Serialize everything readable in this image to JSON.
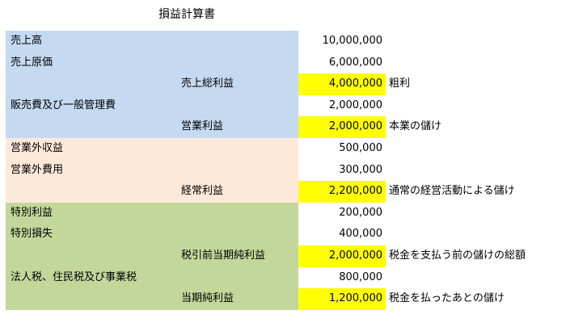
{
  "title": "損益計算書",
  "colors": {
    "blue": "#c5d9f1",
    "peach": "#fde9d9",
    "green": "#c4d79b",
    "highlight": "#ffff00"
  },
  "rows": [
    {
      "label": "売上高",
      "subtotal": "",
      "value": "10,000,000",
      "note": "",
      "group": "blue",
      "highlight": false
    },
    {
      "label": "売上原価",
      "subtotal": "",
      "value": "6,000,000",
      "note": "",
      "group": "blue",
      "highlight": false
    },
    {
      "label": "",
      "subtotal": "売上総利益",
      "value": "4,000,000",
      "note": "粗利",
      "group": "blue",
      "highlight": true
    },
    {
      "label": "販売費及び一般管理費",
      "subtotal": "",
      "value": "2,000,000",
      "note": "",
      "group": "blue",
      "highlight": false
    },
    {
      "label": "",
      "subtotal": "営業利益",
      "value": "2,000,000",
      "note": "本業の儲け",
      "group": "blue",
      "highlight": true
    },
    {
      "label": "営業外収益",
      "subtotal": "",
      "value": "500,000",
      "note": "",
      "group": "peach",
      "highlight": false
    },
    {
      "label": "営業外費用",
      "subtotal": "",
      "value": "300,000",
      "note": "",
      "group": "peach",
      "highlight": false
    },
    {
      "label": "",
      "subtotal": "経常利益",
      "value": "2,200,000",
      "note": "通常の経営活動による儲け",
      "group": "peach",
      "highlight": true
    },
    {
      "label": "特別利益",
      "subtotal": "",
      "value": "200,000",
      "note": "",
      "group": "green",
      "highlight": false
    },
    {
      "label": "特別損失",
      "subtotal": "",
      "value": "400,000",
      "note": "",
      "group": "green",
      "highlight": false
    },
    {
      "label": "",
      "subtotal": "税引前当期純利益",
      "value": "2,000,000",
      "note": "税金を支払う前の儲けの総額",
      "group": "green",
      "highlight": true
    },
    {
      "label": "法人税、住民税及び事業税",
      "subtotal": "",
      "value": "800,000",
      "note": "",
      "group": "green",
      "highlight": false
    },
    {
      "label": "",
      "subtotal": "当期純利益",
      "value": "1,200,000",
      "note": "税金を払ったあとの儲け",
      "group": "green",
      "highlight": true
    }
  ]
}
